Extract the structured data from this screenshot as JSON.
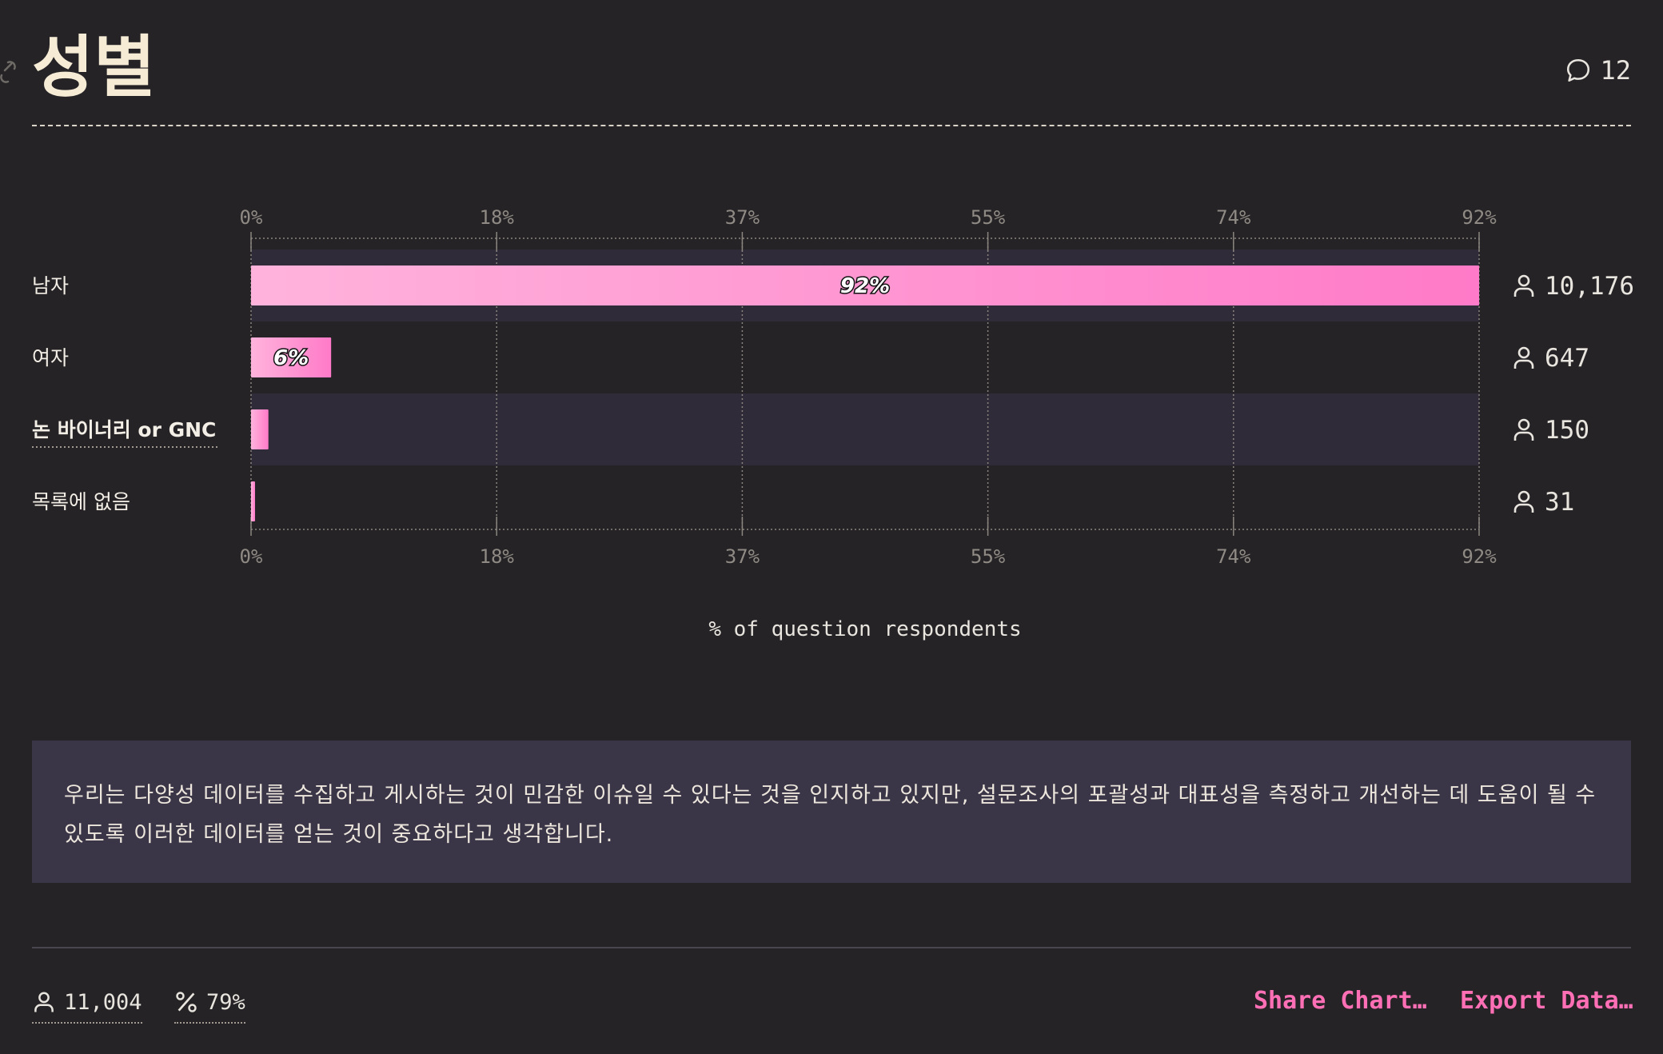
{
  "title": "성별",
  "comments": {
    "count": "12",
    "icon": "speech-bubble-icon"
  },
  "colors": {
    "accent": "#ff6fb5",
    "bar_start": "#ffb3dc",
    "bar_end": "#ff7ac8",
    "highlight_row": "#302b38",
    "background": "#252326"
  },
  "chart_data": {
    "type": "bar",
    "orientation": "horizontal",
    "categories": [
      "남자",
      "여자",
      "논 바이너리 or GNC",
      "목록에 없음"
    ],
    "values": [
      92,
      6,
      1.3,
      0.3
    ],
    "data_labels": [
      "92%",
      "6%",
      "",
      ""
    ],
    "counts": [
      "10,176",
      "647",
      "150",
      "31"
    ],
    "highlighted_category": "논 바이너리 or GNC",
    "xlim": [
      0,
      92
    ],
    "tick_labels": [
      "0%",
      "18%",
      "37%",
      "55%",
      "74%",
      "92%"
    ],
    "xlabel": "% of question respondents",
    "grid": true
  },
  "note": "우리는 다양성 데이터를 수집하고 게시하는 것이 민감한 이슈일 수 있다는 것을 인지하고 있지만, 설문조사의 포괄성과 대표성을 측정하고 개선하는 데 도움이 될 수 있도록 이러한 데이터를 얻는 것이 중요하다고 생각합니다.",
  "footer": {
    "respondents": "11,004",
    "percentage": "79%",
    "share_label": "Share Chart…",
    "export_label": "Export Data…"
  }
}
